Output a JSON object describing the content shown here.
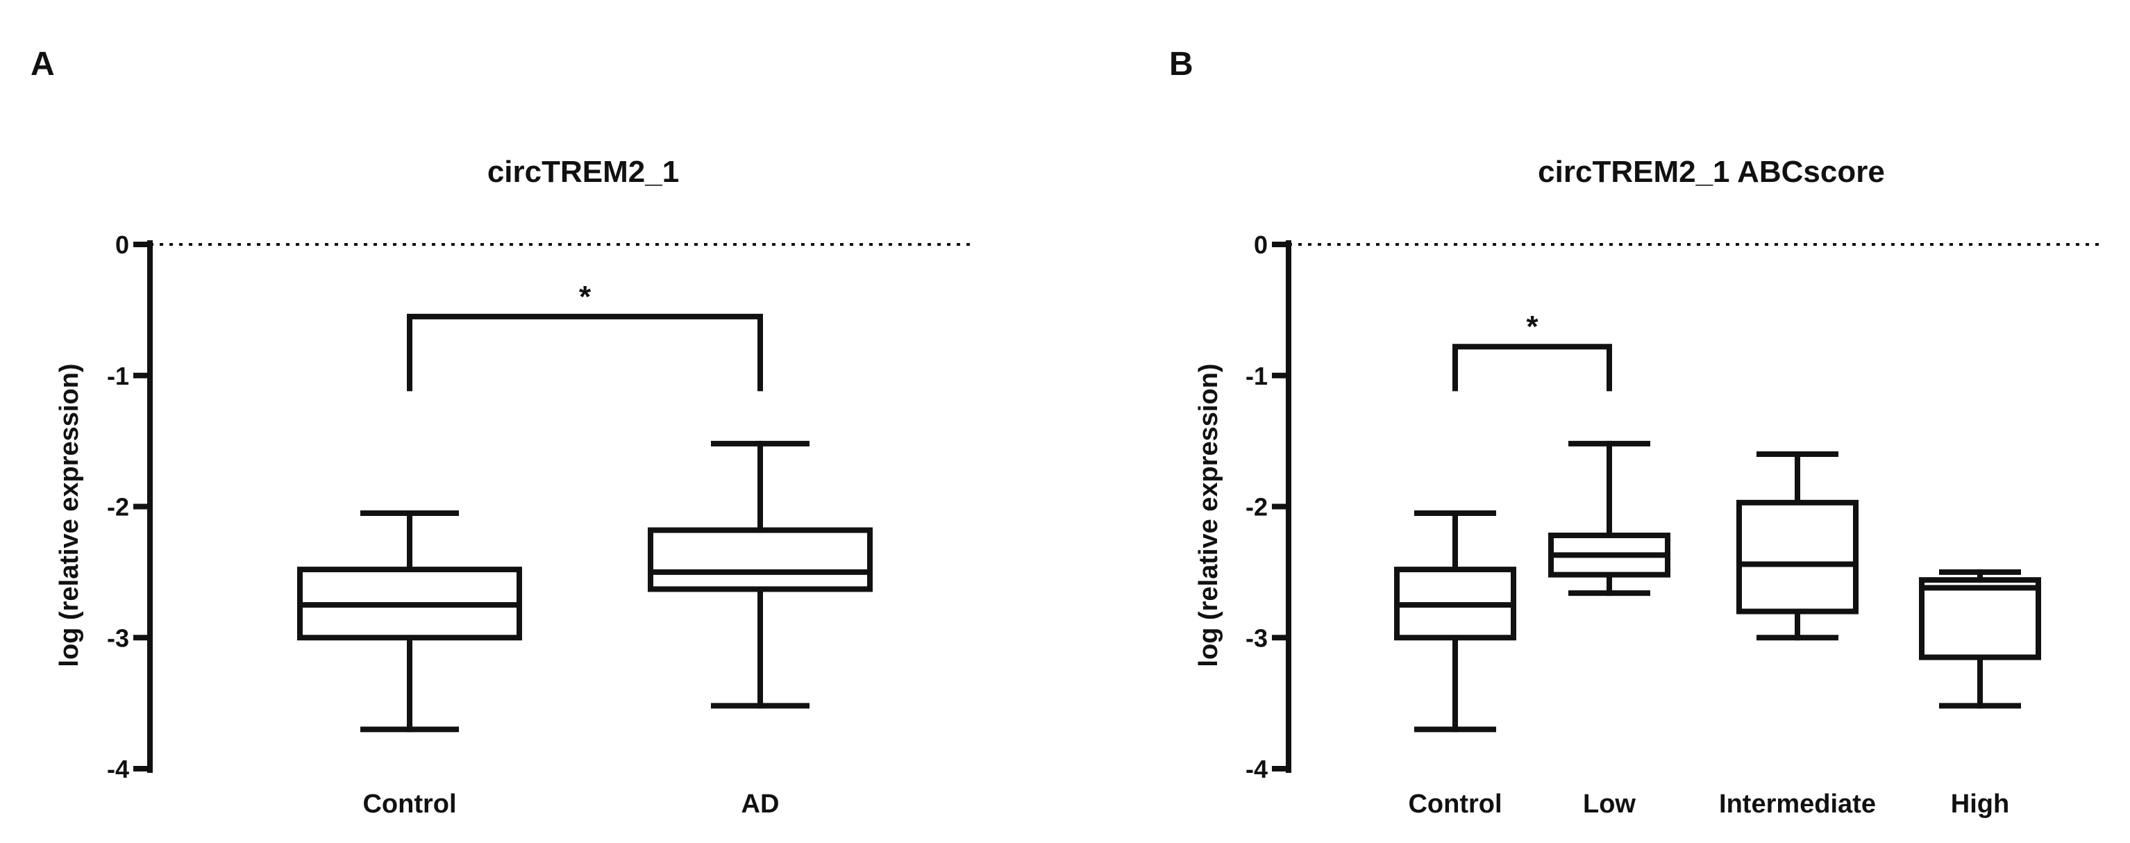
{
  "chart_data": [
    {
      "panel": "A",
      "type": "box",
      "title": "circTREM2_1",
      "xlabel": "",
      "ylabel": "log (relative expression)",
      "ylim": [
        -4,
        0
      ],
      "yticks": [
        0,
        -1,
        -2,
        -3,
        -4
      ],
      "reference_line": 0,
      "categories": [
        "Control",
        "AD"
      ],
      "boxes": [
        {
          "name": "Control",
          "min": -3.7,
          "q1": -3.0,
          "median": -2.75,
          "q3": -2.48,
          "max": -2.05
        },
        {
          "name": "AD",
          "min": -3.52,
          "q1": -2.63,
          "median": -2.5,
          "q3": -2.18,
          "max": -1.52
        }
      ],
      "significance": [
        {
          "from": 0,
          "to": 1,
          "y": -0.55,
          "drop_to": -1.12,
          "label": "*"
        }
      ]
    },
    {
      "panel": "B",
      "type": "box",
      "title": "circTREM2_1 ABCscore",
      "xlabel": "",
      "ylabel": "log (relative expression)",
      "ylim": [
        -4,
        0
      ],
      "yticks": [
        0,
        -1,
        -2,
        -3,
        -4
      ],
      "reference_line": 0,
      "categories": [
        "Control",
        "Low",
        "Intermediate",
        "High"
      ],
      "boxes": [
        {
          "name": "Control",
          "min": -3.7,
          "q1": -3.0,
          "median": -2.75,
          "q3": -2.48,
          "max": -2.05
        },
        {
          "name": "Low",
          "min": -2.66,
          "q1": -2.52,
          "median": -2.37,
          "q3": -2.22,
          "max": -1.52
        },
        {
          "name": "Intermediate",
          "min": -3.0,
          "q1": -2.8,
          "median": -2.44,
          "q3": -1.97,
          "max": -1.6
        },
        {
          "name": "High",
          "min": -3.52,
          "q1": -3.15,
          "median": -2.62,
          "q3": -2.56,
          "max": -2.5
        }
      ],
      "significance": [
        {
          "from": 0,
          "to": 1,
          "y": -0.78,
          "drop_to": -1.12,
          "label": "*"
        }
      ]
    }
  ]
}
